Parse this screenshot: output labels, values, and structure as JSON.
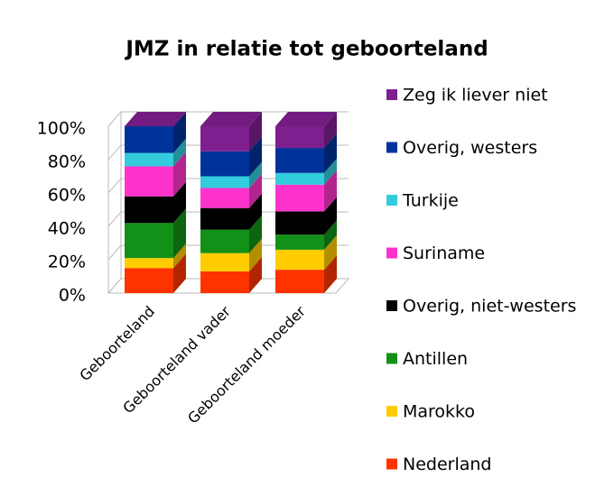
{
  "chart_data": {
    "type": "bar3d_stacked",
    "title": "JMZ  in relatie tot geboorteland",
    "categories": [
      "Geboorteland",
      "Geboorteland vader",
      "Geboorteland moeder"
    ],
    "series": [
      {
        "name": "Nederland",
        "color": "#ff3300",
        "values": [
          15,
          13,
          14
        ]
      },
      {
        "name": "Marokko",
        "color": "#ffcc00",
        "values": [
          6,
          11,
          12
        ]
      },
      {
        "name": "Antillen",
        "color": "#129018",
        "values": [
          21,
          14,
          9
        ]
      },
      {
        "name": "Overig, niet-westers",
        "color": "#000000",
        "values": [
          16,
          13,
          14
        ]
      },
      {
        "name": "Suriname",
        "color": "#ff33cc",
        "values": [
          18,
          12,
          16
        ]
      },
      {
        "name": "Turkije",
        "color": "#33ccdd",
        "values": [
          8,
          7,
          7
        ]
      },
      {
        "name": "Overig, westers",
        "color": "#003399",
        "values": [
          16,
          15,
          15
        ]
      },
      {
        "name": "Zeg ik liever niet",
        "color": "#7f1f8f",
        "values": [
          0,
          15,
          13
        ]
      }
    ],
    "ylim": [
      0,
      100
    ],
    "yticks": [
      {
        "value": 0,
        "label": "0%"
      },
      {
        "value": 20,
        "label": "20%"
      },
      {
        "value": 40,
        "label": "40%"
      },
      {
        "value": 60,
        "label": "60%"
      },
      {
        "value": 80,
        "label": "80%"
      },
      {
        "value": 100,
        "label": "100%"
      }
    ],
    "grid": true,
    "legend": "right"
  }
}
